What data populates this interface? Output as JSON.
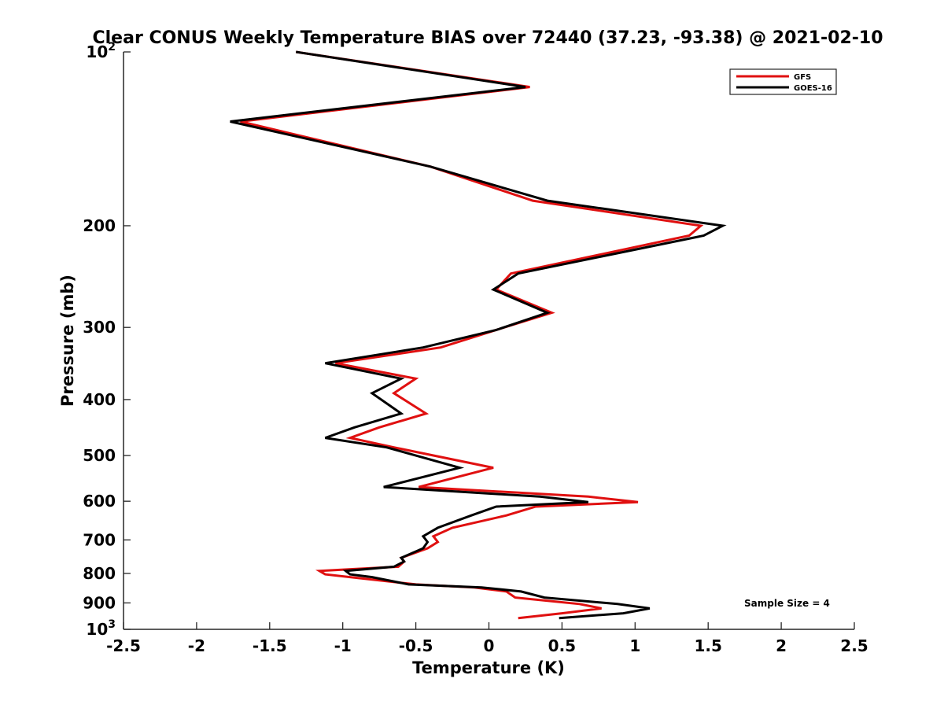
{
  "chart_data": {
    "type": "line",
    "title": "Clear CONUS Weekly Temperature BIAS over 72440 (37.23, -93.38) @ 2021-02-10",
    "xlabel": "Temperature (K)",
    "ylabel": "Pressure (mb)",
    "xlim": [
      -2.5,
      2.5
    ],
    "ylim": [
      100,
      1000
    ],
    "y_scale": "log",
    "y_reversed": true,
    "x_ticks": [
      -2.5,
      -2,
      -1.5,
      -1,
      -0.5,
      0,
      0.5,
      1,
      1.5,
      2,
      2.5
    ],
    "x_tick_labels": [
      "-2.5",
      "-2",
      "-1.5",
      "-1",
      "-0.5",
      "0",
      "0.5",
      "1",
      "1.5",
      "2",
      "2.5"
    ],
    "y_ticks": [
      100,
      200,
      300,
      400,
      500,
      600,
      700,
      800,
      900,
      1000
    ],
    "y_tick_labels": [
      {
        "base": "10",
        "exp": "2"
      },
      {
        "base": "200",
        "exp": ""
      },
      {
        "base": "300",
        "exp": ""
      },
      {
        "base": "400",
        "exp": ""
      },
      {
        "base": "500",
        "exp": ""
      },
      {
        "base": "600",
        "exp": ""
      },
      {
        "base": "700",
        "exp": ""
      },
      {
        "base": "800",
        "exp": ""
      },
      {
        "base": "900",
        "exp": ""
      },
      {
        "base": "10",
        "exp": "3"
      }
    ],
    "legend_position": "top-right",
    "annotation": "Sample Size = 4",
    "grid": false,
    "series": [
      {
        "name": "GFS",
        "color": "#e01010",
        "points": [
          [
            -1.32,
            100
          ],
          [
            0.28,
            115
          ],
          [
            -1.7,
            132
          ],
          [
            -0.4,
            158
          ],
          [
            0.3,
            181
          ],
          [
            1.45,
            200
          ],
          [
            1.37,
            208
          ],
          [
            0.15,
            242
          ],
          [
            0.05,
            258
          ],
          [
            0.43,
            283
          ],
          [
            0.05,
            303
          ],
          [
            -0.33,
            325
          ],
          [
            -1.05,
            346
          ],
          [
            -0.5,
            368
          ],
          [
            -0.65,
            390
          ],
          [
            -0.43,
            423
          ],
          [
            -0.75,
            447
          ],
          [
            -0.95,
            466
          ],
          [
            -0.65,
            484
          ],
          [
            0.03,
            525
          ],
          [
            -0.48,
            567
          ],
          [
            0.68,
            589
          ],
          [
            1.02,
            602
          ],
          [
            0.32,
            613
          ],
          [
            0.12,
            635
          ],
          [
            -0.25,
            667
          ],
          [
            -0.38,
            690
          ],
          [
            -0.35,
            706
          ],
          [
            -0.42,
            724
          ],
          [
            -0.6,
            752
          ],
          [
            -0.58,
            763
          ],
          [
            -0.62,
            779
          ],
          [
            -1.16,
            792
          ],
          [
            -1.12,
            803
          ],
          [
            -0.95,
            812
          ],
          [
            -0.5,
            836
          ],
          [
            -0.1,
            846
          ],
          [
            0.12,
            860
          ],
          [
            0.18,
            881
          ],
          [
            0.62,
            904
          ],
          [
            0.77,
            920
          ],
          [
            0.5,
            938
          ],
          [
            0.2,
            956
          ]
        ]
      },
      {
        "name": "GOES-16",
        "color": "#000000",
        "points": [
          [
            -1.32,
            100
          ],
          [
            0.25,
            115
          ],
          [
            -1.77,
            132
          ],
          [
            -0.4,
            158
          ],
          [
            0.4,
            181
          ],
          [
            1.6,
            200
          ],
          [
            1.47,
            208
          ],
          [
            0.2,
            242
          ],
          [
            0.03,
            258
          ],
          [
            0.4,
            283
          ],
          [
            0.05,
            303
          ],
          [
            -0.45,
            325
          ],
          [
            -1.12,
            346
          ],
          [
            -0.6,
            368
          ],
          [
            -0.8,
            390
          ],
          [
            -0.6,
            423
          ],
          [
            -0.92,
            447
          ],
          [
            -1.12,
            466
          ],
          [
            -0.7,
            484
          ],
          [
            -0.2,
            525
          ],
          [
            -0.72,
            567
          ],
          [
            0.35,
            589
          ],
          [
            0.68,
            602
          ],
          [
            0.05,
            613
          ],
          [
            -0.12,
            635
          ],
          [
            -0.35,
            667
          ],
          [
            -0.45,
            690
          ],
          [
            -0.42,
            706
          ],
          [
            -0.45,
            724
          ],
          [
            -0.6,
            752
          ],
          [
            -0.58,
            763
          ],
          [
            -0.65,
            779
          ],
          [
            -0.98,
            792
          ],
          [
            -0.95,
            803
          ],
          [
            -0.8,
            812
          ],
          [
            -0.55,
            836
          ],
          [
            -0.05,
            846
          ],
          [
            0.22,
            860
          ],
          [
            0.38,
            881
          ],
          [
            0.88,
            904
          ],
          [
            1.1,
            920
          ],
          [
            0.92,
            938
          ],
          [
            0.48,
            956
          ]
        ]
      }
    ]
  }
}
